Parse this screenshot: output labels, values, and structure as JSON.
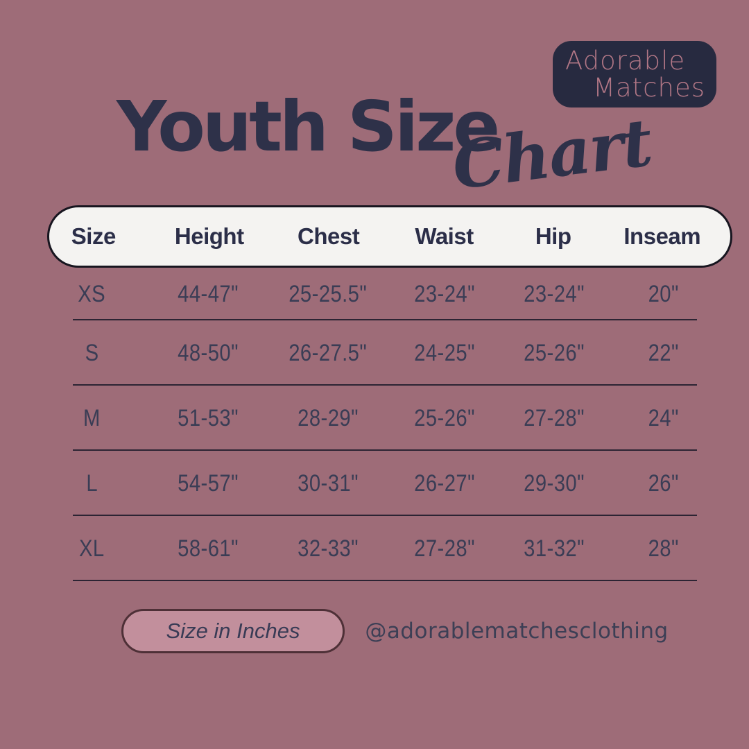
{
  "logo": {
    "line1": "Adorable",
    "line2": "Matches"
  },
  "title": {
    "main": "Youth Size",
    "script": "Chart"
  },
  "table": {
    "columns": [
      "Size",
      "Height",
      "Chest",
      "Waist",
      "Hip",
      "Inseam"
    ],
    "rows": [
      [
        "XS",
        "44-47\"",
        "25-25.5\"",
        "23-24\"",
        "23-24\"",
        "20\""
      ],
      [
        "S",
        "48-50\"",
        "26-27.5\"",
        "24-25\"",
        "25-26\"",
        "22\""
      ],
      [
        "M",
        "51-53\"",
        "28-29\"",
        "25-26\"",
        "27-28\"",
        "24\""
      ],
      [
        "L",
        "54-57\"",
        "30-31\"",
        "26-27\"",
        "29-30\"",
        "26\""
      ],
      [
        "XL",
        "58-61\"",
        "32-33\"",
        "27-28\"",
        "31-32\"",
        "28\""
      ]
    ]
  },
  "footer": {
    "note": "Size in Inches",
    "handle": "@adorablematchesclothing"
  },
  "chart_data": {
    "type": "table",
    "title": "Youth Size Chart",
    "units": "inches",
    "columns": [
      "Size",
      "Height",
      "Chest",
      "Waist",
      "Hip",
      "Inseam"
    ],
    "rows": [
      [
        "XS",
        "44-47\"",
        "25-25.5\"",
        "23-24\"",
        "23-24\"",
        "20\""
      ],
      [
        "S",
        "48-50\"",
        "26-27.5\"",
        "24-25\"",
        "25-26\"",
        "22\""
      ],
      [
        "M",
        "51-53\"",
        "28-29\"",
        "25-26\"",
        "27-28\"",
        "24\""
      ],
      [
        "L",
        "54-57\"",
        "30-31\"",
        "26-27\"",
        "29-30\"",
        "26\""
      ],
      [
        "XL",
        "58-61\"",
        "32-33\"",
        "27-28\"",
        "31-32\"",
        "28\""
      ]
    ]
  },
  "colors": {
    "background": "#9e6c78",
    "navy": "#2e3149",
    "header_fill": "#f4f3f1",
    "header_border": "#17151f",
    "logo_bg": "#272a40",
    "logo_text": "#b27786",
    "note_fill": "#c28f9c",
    "note_border": "#4e3037",
    "row_line": "#2c2433"
  }
}
